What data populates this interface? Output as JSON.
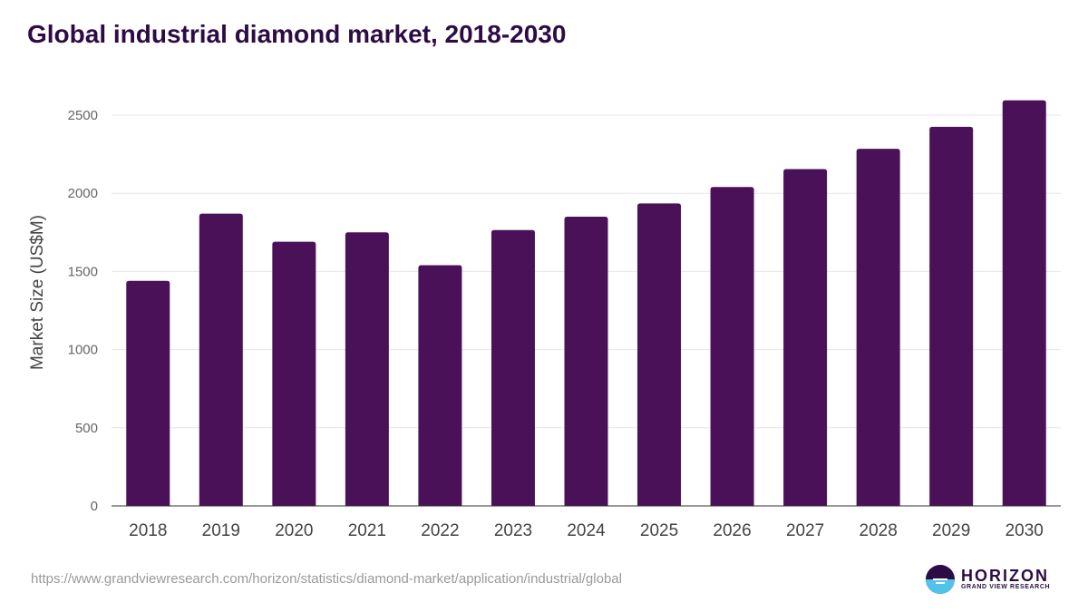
{
  "chart_data": {
    "type": "bar",
    "title": "Global industrial diamond market, 2018-2030",
    "xlabel": "",
    "ylabel": "Market Size (US$M)",
    "categories": [
      "2018",
      "2019",
      "2020",
      "2021",
      "2022",
      "2023",
      "2024",
      "2025",
      "2026",
      "2027",
      "2028",
      "2029",
      "2030"
    ],
    "values": [
      1440,
      1870,
      1690,
      1750,
      1540,
      1765,
      1850,
      1935,
      2040,
      2155,
      2285,
      2425,
      2595
    ],
    "ylim": [
      0,
      2500
    ],
    "yticks": [
      "0",
      "500",
      "1000",
      "1500",
      "2000",
      "2500"
    ],
    "grid": true,
    "bar_color": "#4a1158"
  },
  "footer": {
    "source_url": "https://www.grandviewresearch.com/horizon/statistics/diamond-market/application/industrial/global"
  },
  "brand": {
    "name": "HORIZON",
    "subtitle": "GRAND VIEW RESEARCH",
    "logo_icon": "horizon-sun-icon",
    "colors": {
      "primary": "#2d0b45",
      "accent": "#4fc3e8"
    }
  }
}
